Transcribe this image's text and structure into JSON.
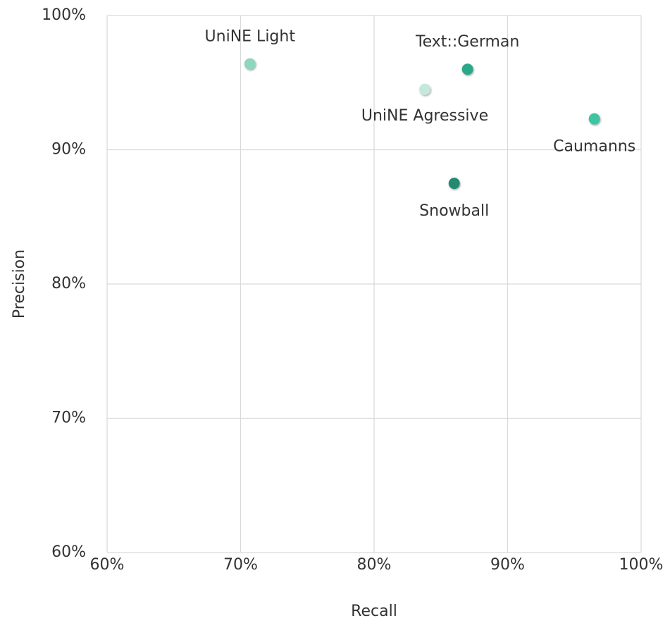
{
  "chart_data": {
    "type": "scatter",
    "xlabel": "Recall",
    "ylabel": "Precision",
    "xlim": [
      60,
      100
    ],
    "ylim": [
      60,
      100
    ],
    "xticks": [
      {
        "value": 60,
        "label": "60%"
      },
      {
        "value": 70,
        "label": "70%"
      },
      {
        "value": 80,
        "label": "80%"
      },
      {
        "value": 90,
        "label": "90%"
      },
      {
        "value": 100,
        "label": "100%"
      }
    ],
    "yticks": [
      {
        "value": 60,
        "label": "60%"
      },
      {
        "value": 70,
        "label": "70%"
      },
      {
        "value": 80,
        "label": "80%"
      },
      {
        "value": 90,
        "label": "90%"
      },
      {
        "value": 100,
        "label": "100%"
      }
    ],
    "grid": true,
    "series": [
      {
        "name": "UniNE Light",
        "color": "#8fd5c0",
        "x": [
          70.7
        ],
        "values": [
          96.4
        ]
      },
      {
        "name": "Text::German",
        "color": "#2aa888",
        "x": [
          87.0
        ],
        "values": [
          96.0
        ]
      },
      {
        "name": "UniNE Agressive",
        "color": "#c5e8dc",
        "x": [
          83.8
        ],
        "values": [
          94.5
        ]
      },
      {
        "name": "Caumanns",
        "color": "#3cc4a0",
        "x": [
          96.5
        ],
        "values": [
          92.3
        ]
      },
      {
        "name": "Snowball",
        "color": "#228a70",
        "x": [
          86.0
        ],
        "values": [
          87.5
        ]
      }
    ]
  }
}
